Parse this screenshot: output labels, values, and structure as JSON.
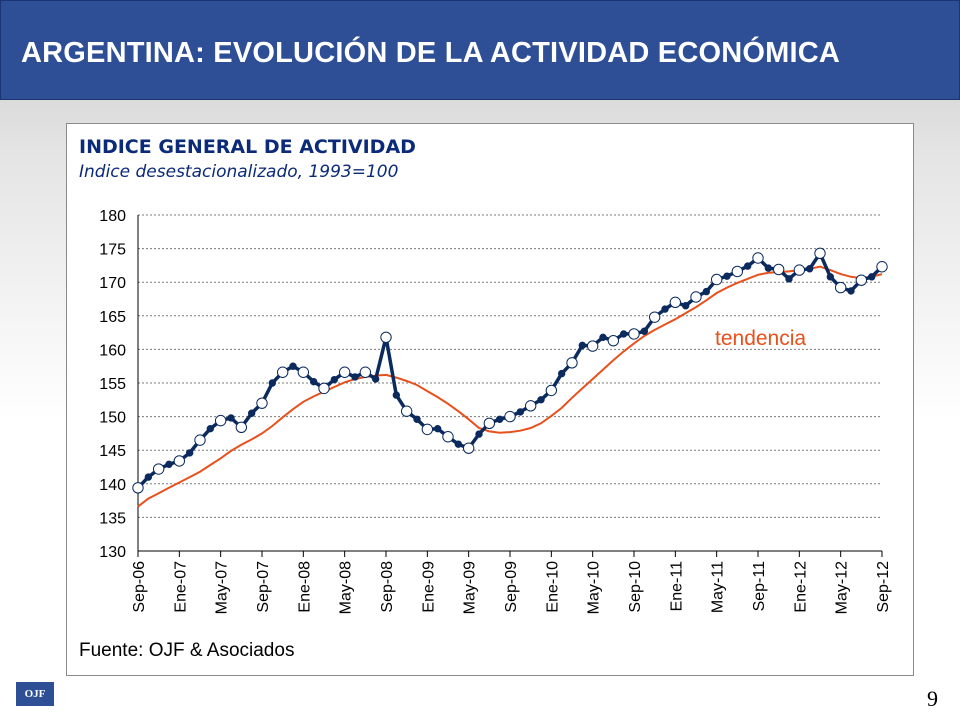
{
  "header": {
    "title": "ARGENTINA: EVOLUCIÓN DE LA ACTIVIDAD ECONÓMICA"
  },
  "footer": {
    "logo": "OJF",
    "page_number": "9"
  },
  "colors": {
    "header_bg": "#2e4f95",
    "observed": "#0b2a5e",
    "trend": "#e8501c",
    "marker_fill": "#ffffff"
  },
  "chart_data": {
    "type": "line",
    "title": "INDICE GENERAL DE ACTIVIDAD",
    "subtitle": "Indice desestacionalizado, 1993=100",
    "source": "Fuente: OJF & Asociados",
    "ylim": [
      130,
      180
    ],
    "yticks": [
      130,
      135,
      140,
      145,
      150,
      155,
      160,
      165,
      170,
      175,
      180
    ],
    "grid": true,
    "xticks": [
      {
        "index": 0,
        "label": "Sep-06"
      },
      {
        "index": 4,
        "label": "Ene-07"
      },
      {
        "index": 8,
        "label": "May-07"
      },
      {
        "index": 12,
        "label": "Sep-07"
      },
      {
        "index": 16,
        "label": "Ene-08"
      },
      {
        "index": 20,
        "label": "May-08"
      },
      {
        "index": 24,
        "label": "Sep-08"
      },
      {
        "index": 28,
        "label": "Ene-09"
      },
      {
        "index": 32,
        "label": "May-09"
      },
      {
        "index": 36,
        "label": "Sep-09"
      },
      {
        "index": 40,
        "label": "Ene-10"
      },
      {
        "index": 44,
        "label": "May-10"
      },
      {
        "index": 48,
        "label": "Sep-10"
      },
      {
        "index": 52,
        "label": "Ene-11"
      },
      {
        "index": 56,
        "label": "May-11"
      },
      {
        "index": 60,
        "label": "Sep-11"
      },
      {
        "index": 64,
        "label": "Ene-12"
      },
      {
        "index": 68,
        "label": "May-12"
      },
      {
        "index": 72,
        "label": "Sep-12"
      }
    ],
    "annotation": {
      "text": "tendencia",
      "series": "tendencia"
    },
    "series": [
      {
        "name": "",
        "role": "observed",
        "marker": "circle",
        "values": [
          139.4,
          141.0,
          142.2,
          142.9,
          143.4,
          144.6,
          146.5,
          148.2,
          149.4,
          149.8,
          148.4,
          150.5,
          152.0,
          155.0,
          156.6,
          157.5,
          156.6,
          155.2,
          154.2,
          155.5,
          156.6,
          155.9,
          156.6,
          155.6,
          161.8,
          153.2,
          150.8,
          149.6,
          148.1,
          148.2,
          147.0,
          145.9,
          145.3,
          147.4,
          149.0,
          149.6,
          150.0,
          150.7,
          151.6,
          152.5,
          153.9,
          156.4,
          158.0,
          160.6,
          160.5,
          161.8,
          161.3,
          162.3,
          162.3,
          162.7,
          164.8,
          166.0,
          167.0,
          166.5,
          167.8,
          168.6,
          170.4,
          170.9,
          171.6,
          172.4,
          173.6,
          172.1,
          171.9,
          170.5,
          171.8,
          172.0,
          174.3,
          170.8,
          169.2,
          168.7,
          170.3,
          170.8,
          172.3
        ]
      },
      {
        "name": "tendencia",
        "role": "trend",
        "marker": "none",
        "values": [
          136.6,
          137.8,
          138.6,
          139.4,
          140.2,
          141.0,
          141.8,
          142.8,
          143.8,
          144.9,
          145.8,
          146.6,
          147.5,
          148.6,
          149.9,
          151.1,
          152.2,
          153.0,
          153.7,
          154.4,
          155.1,
          155.6,
          155.9,
          156.1,
          156.2,
          155.8,
          155.3,
          154.7,
          153.8,
          152.9,
          151.9,
          150.8,
          149.6,
          148.3,
          147.8,
          147.6,
          147.7,
          147.9,
          148.3,
          149.0,
          150.1,
          151.3,
          152.8,
          154.2,
          155.6,
          157.0,
          158.4,
          159.7,
          160.9,
          162.0,
          162.9,
          163.7,
          164.5,
          165.4,
          166.3,
          167.3,
          168.4,
          169.2,
          169.9,
          170.5,
          171.1,
          171.4,
          171.5,
          171.6,
          171.8,
          172.0,
          172.3,
          171.8,
          171.2,
          170.8,
          170.6,
          170.8,
          171.2
        ]
      }
    ]
  }
}
